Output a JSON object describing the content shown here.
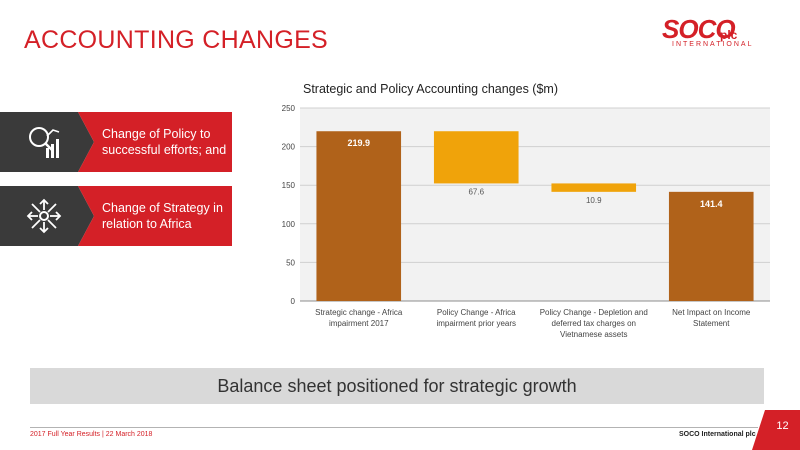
{
  "slide": {
    "title": "ACCOUNTING CHANGES",
    "page_number": "12"
  },
  "logo": {
    "word": "SOCO",
    "suffix": "plc",
    "tagline": "INTERNATIONAL"
  },
  "cards": [
    {
      "text": "Change of Policy to successful efforts; and",
      "icon": "magnifier-chart-icon"
    },
    {
      "text": "Change of Strategy in relation to Africa",
      "icon": "expand-arrows-icon"
    }
  ],
  "banner": {
    "text": "Balance sheet positioned for strategic growth"
  },
  "footer": {
    "left": "2017 Full Year Results  |  22 March 2018",
    "right": "SOCO International plc"
  },
  "colors": {
    "accent_red": "#d42027",
    "bar_total": "#b0621a",
    "bar_change": "#f0a30a",
    "card_dark": "#3a3a3a",
    "banner_grey": "#d9d9d9"
  },
  "chart_data": {
    "type": "bar",
    "subtype": "waterfall",
    "title": "Strategic and Policy Accounting changes ($m)",
    "categories": [
      "Strategic change - Africa impairment 2017",
      "Policy Change - Africa impairment prior years",
      "Policy Change - Depletion and deferred tax charges on Vietnamese assets",
      "Net Impact on Income Statement"
    ],
    "category_lines": [
      [
        "Strategic change - Africa",
        "impairment 2017"
      ],
      [
        "Policy Change - Africa",
        "impairment prior years"
      ],
      [
        "Policy Change - Depletion and",
        "deferred tax charges on",
        "Vietnamese assets"
      ],
      [
        "Net Impact on Income",
        "Statement"
      ]
    ],
    "bars": [
      {
        "base": 0,
        "top": 219.9,
        "kind": "total",
        "label": "219.9"
      },
      {
        "base": 152.3,
        "top": 219.9,
        "kind": "change",
        "label": "67.6"
      },
      {
        "base": 141.4,
        "top": 152.3,
        "kind": "change",
        "label": "10.9"
      },
      {
        "base": 0,
        "top": 141.4,
        "kind": "total",
        "label": "141.4"
      }
    ],
    "ylim": [
      0,
      250
    ],
    "yticks": [
      "0",
      "50",
      "100",
      "150",
      "200",
      "250"
    ],
    "grid": true
  }
}
